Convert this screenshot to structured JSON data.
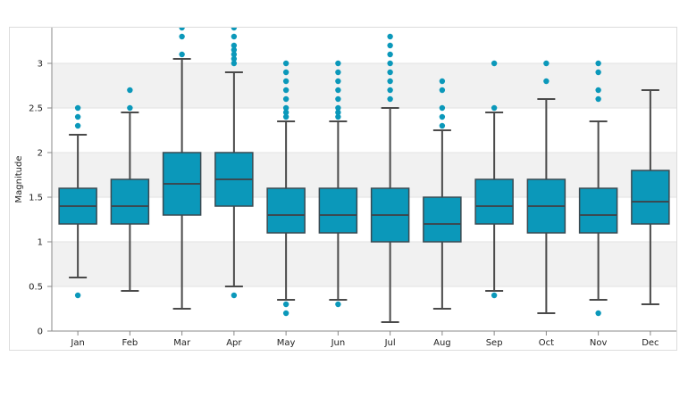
{
  "chart_data": {
    "type": "box",
    "title": "",
    "xlabel": "",
    "ylabel": "Magnitude",
    "ylim": [
      0,
      3.4
    ],
    "yticks": [
      0,
      0.5,
      1,
      1.5,
      2,
      2.5,
      3
    ],
    "ytick_labels": [
      "0",
      "0.5",
      "1",
      "1.5",
      "2",
      "2.5",
      "3"
    ],
    "grid": "alternating horizontal bands",
    "categories": [
      "Jan",
      "Feb",
      "Mar",
      "Apr",
      "May",
      "Jun",
      "Jul",
      "Aug",
      "Sep",
      "Oct",
      "Nov",
      "Dec"
    ],
    "boxes": [
      {
        "min": 0.6,
        "q1": 1.2,
        "median": 1.4,
        "q3": 1.6,
        "max": 2.2,
        "outliers": [
          0.4,
          2.3,
          2.4,
          2.5
        ]
      },
      {
        "min": 0.45,
        "q1": 1.2,
        "median": 1.4,
        "q3": 1.7,
        "max": 2.45,
        "outliers": [
          2.5,
          2.7
        ]
      },
      {
        "min": 0.25,
        "q1": 1.3,
        "median": 1.65,
        "q3": 2.0,
        "max": 3.05,
        "outliers": [
          3.1,
          3.3,
          3.4
        ]
      },
      {
        "min": 0.5,
        "q1": 1.4,
        "median": 1.7,
        "q3": 2.0,
        "max": 2.9,
        "outliers": [
          0.4,
          3.0,
          3.05,
          3.1,
          3.15,
          3.2,
          3.3,
          3.4
        ]
      },
      {
        "min": 0.35,
        "q1": 1.1,
        "median": 1.3,
        "q3": 1.6,
        "max": 2.35,
        "outliers": [
          0.2,
          0.3,
          2.4,
          2.45,
          2.5,
          2.6,
          2.7,
          2.8,
          2.9,
          3.0
        ]
      },
      {
        "min": 0.35,
        "q1": 1.1,
        "median": 1.3,
        "q3": 1.6,
        "max": 2.35,
        "outliers": [
          0.3,
          2.4,
          2.45,
          2.5,
          2.6,
          2.7,
          2.8,
          2.9,
          3.0
        ]
      },
      {
        "min": 0.1,
        "q1": 1.0,
        "median": 1.3,
        "q3": 1.6,
        "max": 2.5,
        "outliers": [
          2.6,
          2.7,
          2.8,
          2.9,
          3.0,
          3.1,
          3.2,
          3.3
        ]
      },
      {
        "min": 0.25,
        "q1": 1.0,
        "median": 1.2,
        "q3": 1.5,
        "max": 2.25,
        "outliers": [
          2.3,
          2.4,
          2.5,
          2.7,
          2.8
        ]
      },
      {
        "min": 0.45,
        "q1": 1.2,
        "median": 1.4,
        "q3": 1.7,
        "max": 2.45,
        "outliers": [
          0.4,
          2.5,
          3.0
        ]
      },
      {
        "min": 0.2,
        "q1": 1.1,
        "median": 1.4,
        "q3": 1.7,
        "max": 2.6,
        "outliers": [
          2.8,
          3.0
        ]
      },
      {
        "min": 0.35,
        "q1": 1.1,
        "median": 1.3,
        "q3": 1.6,
        "max": 2.35,
        "outliers": [
          0.2,
          2.6,
          2.7,
          2.9,
          3.0
        ]
      },
      {
        "min": 0.3,
        "q1": 1.2,
        "median": 1.45,
        "q3": 1.8,
        "max": 2.7,
        "outliers": []
      }
    ],
    "colors": {
      "box_fill": "#0b98ba",
      "box_stroke": "#3a4a52",
      "whisker": "#4a4a4a",
      "outlier": "#0b98ba",
      "band": "#f1f1f1",
      "axis": "#888888"
    }
  }
}
